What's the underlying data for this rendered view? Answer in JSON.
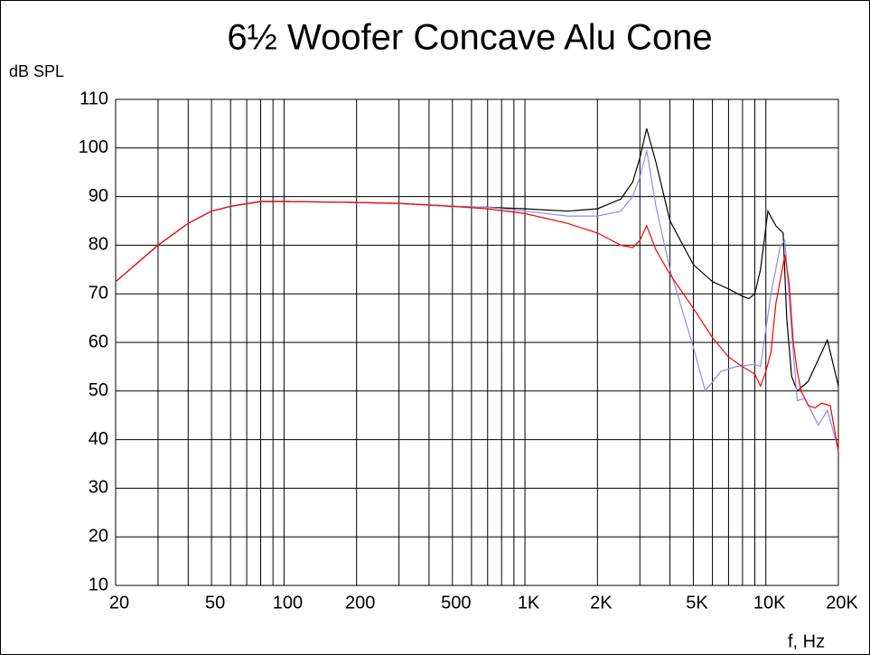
{
  "chart_data": {
    "type": "line",
    "title": "6½ Woofer Concave Alu Cone",
    "y_label": "dB SPL",
    "x_label": "f, Hz",
    "log_x": true,
    "grid": true,
    "xlim": [
      20,
      20000
    ],
    "ylim": [
      10,
      110
    ],
    "yticks": [
      10,
      20,
      30,
      40,
      50,
      60,
      70,
      80,
      90,
      100,
      110
    ],
    "xticks": [
      20,
      50,
      100,
      200,
      500,
      {
        "value": 1000,
        "label": "1K"
      },
      {
        "value": 2000,
        "label": "2K"
      },
      {
        "value": 5000,
        "label": "5K"
      },
      {
        "value": 10000,
        "label": "10K"
      },
      {
        "value": 20000,
        "label": "20K"
      }
    ],
    "xminor": [
      30,
      40,
      60,
      70,
      80,
      90,
      300,
      400,
      600,
      700,
      800,
      900,
      3000,
      4000,
      6000,
      7000,
      8000,
      9000
    ],
    "series": [
      {
        "color": "#000000",
        "x": [
          20,
          30,
          40,
          50,
          60,
          80,
          100,
          200,
          300,
          500,
          700,
          1000,
          1500,
          2000,
          2500,
          2800,
          3000,
          3200,
          3500,
          4000,
          5000,
          6000,
          7000,
          8000,
          8500,
          9000,
          9500,
          10200,
          11000,
          11800,
          12200,
          12800,
          13500,
          15000,
          18000,
          20000
        ],
        "values": [
          72.5,
          80,
          84.5,
          87,
          88,
          89,
          89,
          88.8,
          88.6,
          88,
          87.8,
          87.5,
          87,
          87.5,
          89.5,
          93,
          98,
          104,
          97,
          85,
          76,
          72.5,
          71,
          69.5,
          69,
          70,
          75,
          87,
          84,
          82.5,
          65,
          53,
          50,
          52,
          60.5,
          51
        ]
      },
      {
        "color": "#8c8cf0",
        "x": [
          20,
          30,
          40,
          50,
          60,
          80,
          100,
          200,
          300,
          500,
          700,
          1000,
          1500,
          2000,
          2500,
          2800,
          3000,
          3200,
          3500,
          4000,
          5000,
          5600,
          6500,
          7500,
          9000,
          9500,
          10500,
          11500,
          12000,
          12800,
          13500,
          14500,
          16500,
          18000,
          20000
        ],
        "values": [
          72.5,
          80,
          84.5,
          87,
          88,
          89,
          89,
          88.8,
          88.6,
          88,
          87.8,
          87,
          86,
          86,
          87,
          90,
          94,
          99.5,
          88,
          75,
          59,
          50,
          54,
          55,
          55.5,
          55,
          70,
          80,
          81,
          62,
          48,
          48.5,
          43,
          46,
          38
        ]
      },
      {
        "color": "#ff0000",
        "x": [
          20,
          30,
          40,
          50,
          60,
          80,
          100,
          200,
          300,
          500,
          700,
          1000,
          1500,
          2000,
          2500,
          2800,
          3000,
          3200,
          3500,
          4000,
          5000,
          6000,
          7000,
          8000,
          9000,
          9500,
          10000,
          10500,
          11000,
          12000,
          12500,
          13000,
          13500,
          14000,
          15000,
          16000,
          17000,
          18500,
          20000
        ],
        "values": [
          72.5,
          80,
          84.5,
          87,
          88,
          89,
          89,
          88.8,
          88.6,
          88,
          87.5,
          86.5,
          84.5,
          82.5,
          80,
          79.5,
          81,
          84,
          79,
          74,
          67,
          61,
          57,
          55,
          53.5,
          51,
          54,
          58,
          68,
          78,
          72,
          60,
          54,
          50,
          47,
          46.5,
          47.5,
          47,
          37.5
        ]
      }
    ]
  }
}
